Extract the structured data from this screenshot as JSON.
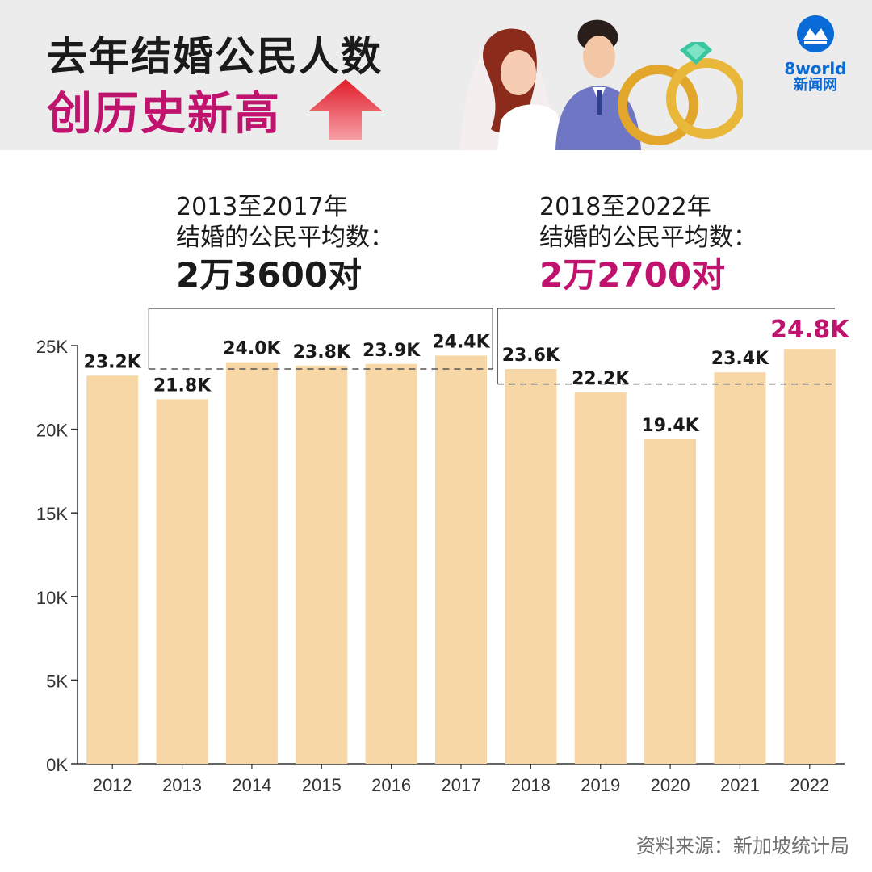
{
  "header": {
    "title_line1": "去年结婚公民人数",
    "title_line2": "创历史新高",
    "brand_name": "8world",
    "brand_sub": "新闻网"
  },
  "annotations": {
    "left": {
      "line1": "2013至2017年",
      "line2": "结婚的公民平均数：",
      "value": "2万3600对"
    },
    "right": {
      "line1": "2018至2022年",
      "line2": "结婚的公民平均数：",
      "value": "2万2700对"
    }
  },
  "source": "资料来源：新加坡统计局",
  "colors": {
    "bar": "#f7d7a6",
    "accent": "#c0136e",
    "text": "#1a1a1a",
    "axis": "#333333",
    "dash": "#555555"
  },
  "chart_data": {
    "type": "bar",
    "categories": [
      "2012",
      "2013",
      "2014",
      "2015",
      "2016",
      "2017",
      "2018",
      "2019",
      "2020",
      "2021",
      "2022"
    ],
    "values": [
      23.2,
      21.8,
      24.0,
      23.8,
      23.9,
      24.4,
      23.6,
      22.2,
      19.4,
      23.4,
      24.8
    ],
    "data_labels": [
      "23.2K",
      "21.8K",
      "24.0K",
      "23.8K",
      "23.9K",
      "24.4K",
      "23.6K",
      "22.2K",
      "19.4K",
      "23.4K",
      "24.8K"
    ],
    "highlight_index": 10,
    "y_ticks": [
      0,
      5,
      10,
      15,
      20,
      25
    ],
    "y_tick_labels": [
      "0K",
      "5K",
      "10K",
      "15K",
      "20K",
      "25K"
    ],
    "ylim": [
      0,
      25
    ],
    "averages": [
      {
        "from": "2013",
        "to": "2017",
        "value": 23.6
      },
      {
        "from": "2018",
        "to": "2022",
        "value": 22.7
      }
    ],
    "title": "",
    "xlabel": "",
    "ylabel": ""
  }
}
